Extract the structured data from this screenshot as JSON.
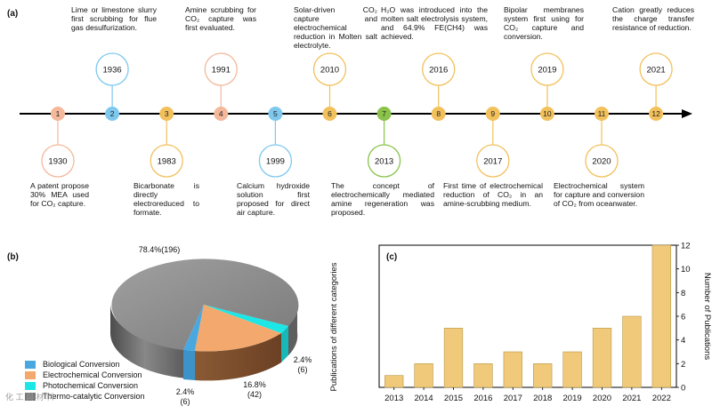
{
  "panels": {
    "a": "(a)",
    "b": "(b)",
    "c": "(c)"
  },
  "timeline": {
    "nodes": [
      {
        "num": "1",
        "year": "1930",
        "color": "#f4b89b",
        "above": false
      },
      {
        "num": "2",
        "year": "1936",
        "color": "#7ec8ee",
        "above": true
      },
      {
        "num": "3",
        "year": "1983",
        "color": "#f2c15c",
        "above": false
      },
      {
        "num": "4",
        "year": "1991",
        "color": "#f4b89b",
        "above": true
      },
      {
        "num": "5",
        "year": "1999",
        "color": "#7ec8ee",
        "above": false
      },
      {
        "num": "6",
        "year": "2010",
        "color": "#f2c15c",
        "above": true
      },
      {
        "num": "7",
        "year": "2013",
        "color": "#8bc34a",
        "above": false
      },
      {
        "num": "8",
        "year": "2016",
        "color": "#f2c15c",
        "above": true
      },
      {
        "num": "9",
        "year": "2017",
        "color": "#f2c15c",
        "above": false
      },
      {
        "num": "10",
        "year": "2019",
        "color": "#f2c15c",
        "above": true
      },
      {
        "num": "11",
        "year": "2020",
        "color": "#f2c15c",
        "above": false
      },
      {
        "num": "12",
        "year": "2021",
        "color": "#f2c15c",
        "above": true
      }
    ],
    "events": {
      "e1930": "A patent propose 30% MEA used for CO₂ capture.",
      "e1936": "Lime or limestone slurry first scrubbing for flue gas desulfurization.",
      "e1983": "Bicarbonate is directly electroreduced to formate.",
      "e1991": "Amine scrubbing for CO₂ capture was first evaluated.",
      "e1999": "Calcium hydroxide solution first proposed for direct air capture.",
      "e2010": "Solar-driven CO₂ capture and electrochemical reduction in Molten salt electrolyte.",
      "e2013": "The concept of electrochemically mediated amine regeneration was proposed.",
      "e2016": "H₂O was introduced into the molten salt electrolysis system, and 64.9% FE(CH4) was achieved.",
      "e2017": "First time of electrochemical reduction of CO₂ in an amine-scrubbing medium.",
      "e2019": "Bipolar membranes system first using for CO₂ capture and conversion.",
      "e2020": "Electrochemical system for capture and conversion of CO₂ from oceanwater.",
      "e2021": "Cation greatly reduces the charge transfer resistance of reduction."
    }
  },
  "pie": {
    "labels": {
      "thermo": "78.4%(196)",
      "photo_pct": "2.4%",
      "photo_n": "(6)",
      "electro_pct": "16.8%",
      "electro_n": "(42)",
      "bio_pct": "2.4%",
      "bio_n": "(6)"
    },
    "legend": [
      {
        "name": "Biological Conversion",
        "color": "#4aa8e0"
      },
      {
        "name": "Electrochemical Conversion",
        "color": "#f3a96e"
      },
      {
        "name": "Photochemical Conversion",
        "color": "#1ce6e6"
      },
      {
        "name": "Thermo-catalytic Conversion",
        "color": "#8c8c8c"
      }
    ]
  },
  "chart_data": {
    "type": "bar",
    "categories": [
      "2013",
      "2014",
      "2015",
      "2016",
      "2017",
      "2018",
      "2019",
      "2020",
      "2021",
      "2022"
    ],
    "values": [
      1,
      2,
      5,
      2,
      3,
      2,
      3,
      5,
      6,
      12
    ],
    "ylabel": "Number of Publications",
    "left_label": "Publications of different categories",
    "ylim": [
      0,
      12
    ],
    "yticks": [
      "0",
      "2",
      "4",
      "6",
      "8",
      "10",
      "12"
    ],
    "bar_color": "#f0c97a"
  },
  "watermark": "化 工 與 材 料"
}
